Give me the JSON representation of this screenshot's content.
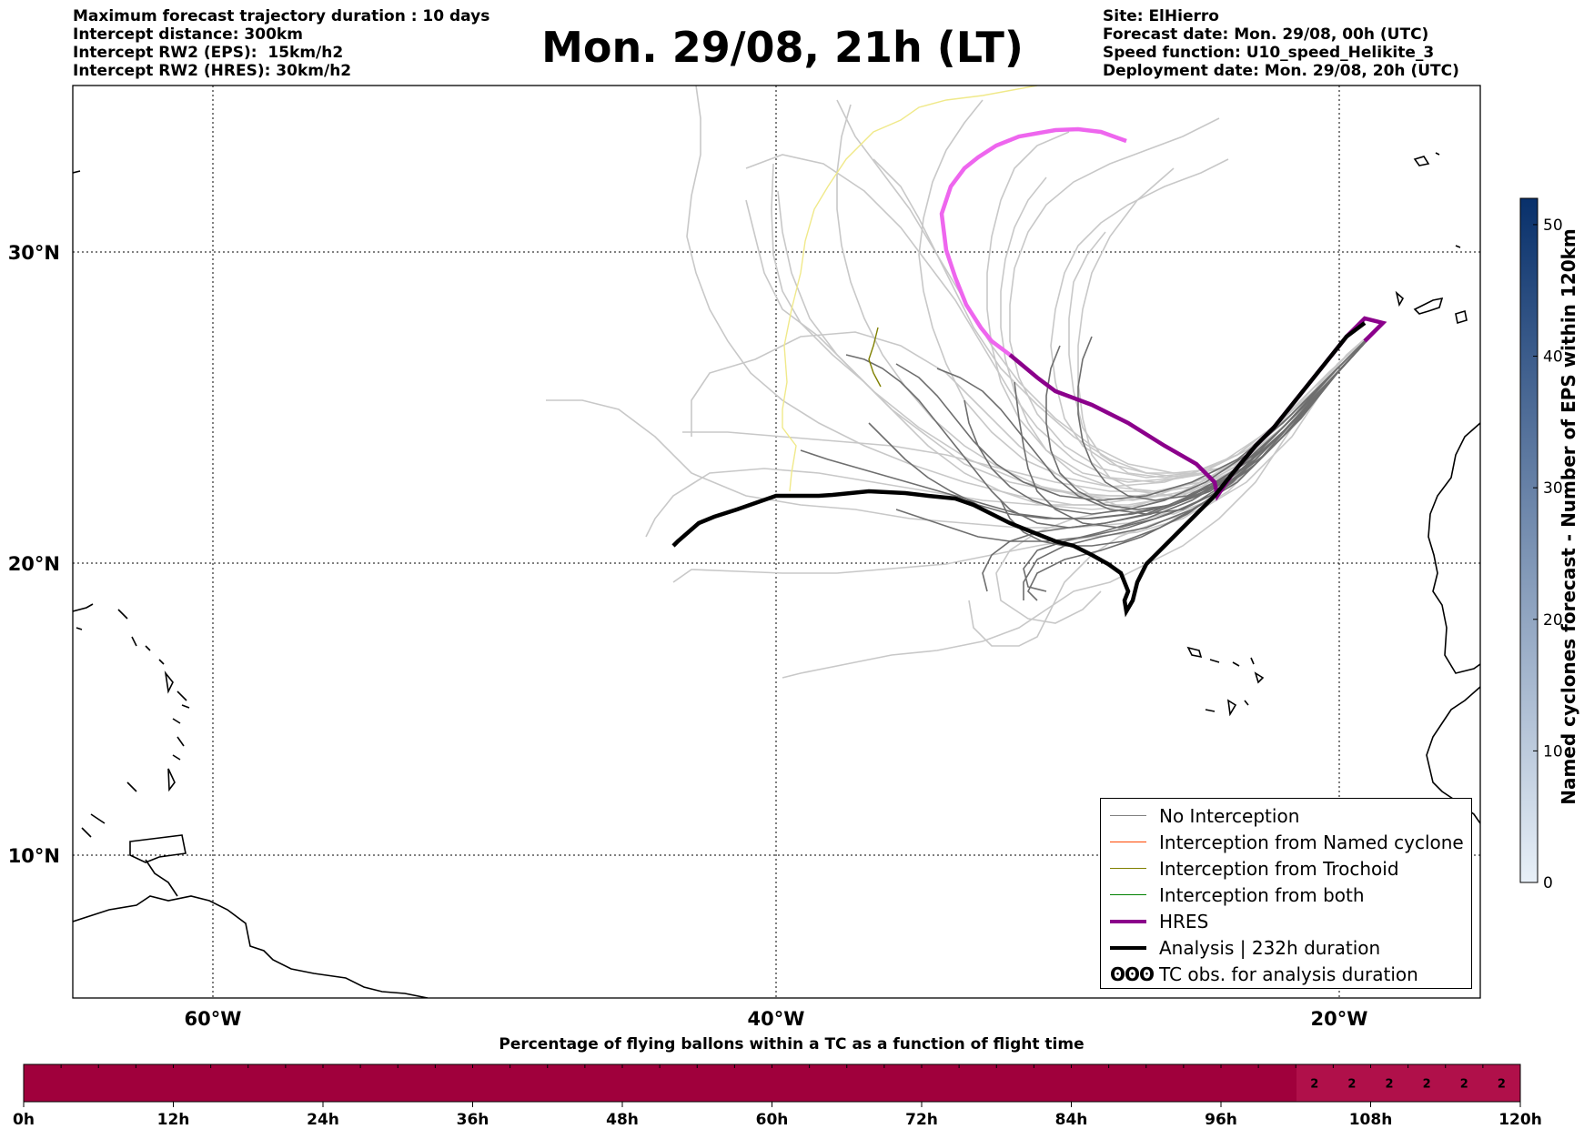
{
  "header": {
    "left_lines": [
      "Maximum forecast trajectory duration : 10 days",
      "Intercept distance: 300km",
      "Intercept RW2 (EPS):  15km/h2",
      "Intercept RW2 (HRES): 30km/h2"
    ],
    "right_lines": [
      "Site: ElHierro",
      "Forecast date: Mon. 29/08, 00h (UTC)",
      "Speed function: U10_speed_Helikite_3",
      "Deployment date: Mon. 29/08, 20h (UTC)"
    ],
    "title": "Mon. 29/08, 21h (LT)"
  },
  "map": {
    "lat_labels": [
      "30°N",
      "20°N",
      "10°N"
    ],
    "lon_labels": [
      "60°W",
      "40°W",
      "20°W"
    ],
    "colors": {
      "ensemble_light": "#c8c8c8",
      "ensemble_dark": "#6e6e6e",
      "hres": "#8b008b",
      "hres_extension": "#ee66ee",
      "analysis": "#000000",
      "trochoid": "#808000",
      "yellow_track": "#f0e98a",
      "coast": "#000000"
    }
  },
  "legend": {
    "items": [
      {
        "label": "No Interception",
        "color": "#808080",
        "width": 1.5
      },
      {
        "label": "Interception from Named cyclone",
        "color": "#ff4500",
        "width": 1.5
      },
      {
        "label": "Interception from Trochoid",
        "color": "#808000",
        "width": 1.5
      },
      {
        "label": "Interception from both",
        "color": "#008000",
        "width": 1.5
      },
      {
        "label": "HRES",
        "color": "#8b008b",
        "width": 4
      },
      {
        "label": "Analysis | 232h duration",
        "color": "#000000",
        "width": 4
      },
      {
        "label": "TC obs. for analysis duration",
        "color": "#000000",
        "width": 0,
        "symbol": "ʘʘʘ"
      }
    ]
  },
  "colorbar": {
    "title": "Named cyclones forecast - Number of EPS within 120km",
    "ticks": [
      "0",
      "10",
      "20",
      "30",
      "40",
      "50"
    ],
    "min": 0,
    "max": 52,
    "color_low": "#e8f0f8",
    "color_high": "#08306b"
  },
  "bottom_bar": {
    "title": "Percentage of flying ballons within a TC as a function of flight time",
    "tick_labels": [
      "0h",
      "12h",
      "24h",
      "36h",
      "48h",
      "60h",
      "72h",
      "84h",
      "96h",
      "108h",
      "120h"
    ],
    "fill_color": "#a0003c",
    "highlight_color": "#b0104a",
    "cell_values": [
      "2",
      "2",
      "2",
      "2",
      "2",
      "2"
    ]
  }
}
